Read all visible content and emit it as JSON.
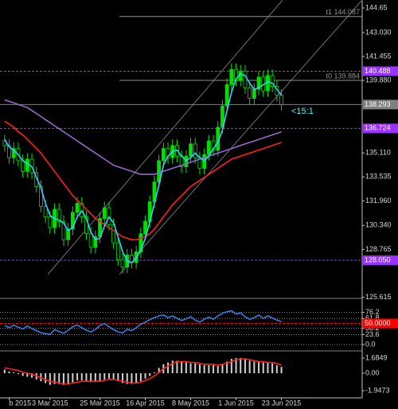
{
  "chart_data": [
    {
      "type": "candlestick",
      "categories": [
        null,
        "b 2015",
        null,
        null,
        null,
        null,
        null,
        null,
        null,
        null,
        "3 Mar 2015",
        null,
        null,
        null,
        null,
        null,
        null,
        null,
        null,
        null,
        null,
        "25 Mar 2015",
        null,
        null,
        null,
        null,
        null,
        null,
        null,
        null,
        null,
        "16 Apr 2015",
        null,
        null,
        null,
        null,
        null,
        null,
        null,
        null,
        null,
        "8 May 2015",
        null,
        null,
        null,
        null,
        null,
        null,
        null,
        null,
        null,
        "1 Jun 2015",
        null,
        null,
        null,
        null,
        null,
        null,
        null,
        null,
        null,
        "23 Jun 2015"
      ],
      "open": [
        135.9,
        135.6,
        134.8,
        135.4,
        134.6,
        133.9,
        134.7,
        133.8,
        132.9,
        131.6,
        130.9,
        130.2,
        131.4,
        130.6,
        129.4,
        130.1,
        131.2,
        131.8,
        130.9,
        129.8,
        128.9,
        129.6,
        130.8,
        131.5,
        130.4,
        129.2,
        128.1,
        127.6,
        128.4,
        127.9,
        128.6,
        129.8,
        130.6,
        131.9,
        133.2,
        134.6,
        135.4,
        134.8,
        135.6,
        134.9,
        134.2,
        134.9,
        135.7,
        134.8,
        134.1,
        135.0,
        135.9,
        135.3,
        136.8,
        138.2,
        139.6,
        140.6,
        139.9,
        140.5,
        139.4,
        138.7,
        139.3,
        140.1,
        139.2,
        140.2,
        139.5,
        138.9
      ],
      "high": [
        136.3,
        136.0,
        135.8,
        135.8,
        135.0,
        135.1,
        135.1,
        134.2,
        133.3,
        132.0,
        131.3,
        131.8,
        131.8,
        131.0,
        130.5,
        131.6,
        132.2,
        132.2,
        131.3,
        130.2,
        130.0,
        131.2,
        131.9,
        131.9,
        130.8,
        129.6,
        128.5,
        128.8,
        128.8,
        129.0,
        130.2,
        131.0,
        132.3,
        133.6,
        135.0,
        135.8,
        135.8,
        136.0,
        136.0,
        135.3,
        135.3,
        136.1,
        136.1,
        135.2,
        135.4,
        136.3,
        136.3,
        137.2,
        138.6,
        140.0,
        141.0,
        141.0,
        140.9,
        140.9,
        139.8,
        139.7,
        140.5,
        140.5,
        140.6,
        140.6,
        139.9,
        139.3
      ],
      "low": [
        135.2,
        134.4,
        134.4,
        134.2,
        133.5,
        133.5,
        133.4,
        132.5,
        131.2,
        130.5,
        129.8,
        129.8,
        130.2,
        129.0,
        129.0,
        129.7,
        130.8,
        130.5,
        129.4,
        128.5,
        128.5,
        129.2,
        130.4,
        130.0,
        128.8,
        127.7,
        127.2,
        127.2,
        127.5,
        127.5,
        128.2,
        129.4,
        130.2,
        131.5,
        132.8,
        134.2,
        134.4,
        134.4,
        134.5,
        133.8,
        133.8,
        134.5,
        134.4,
        133.7,
        133.7,
        134.6,
        134.9,
        134.9,
        136.4,
        137.8,
        139.2,
        139.5,
        139.5,
        139.0,
        138.3,
        138.3,
        138.9,
        138.8,
        138.8,
        139.1,
        138.5,
        137.9
      ],
      "close": [
        135.6,
        134.8,
        135.4,
        134.6,
        133.9,
        134.7,
        133.8,
        132.9,
        131.6,
        130.9,
        130.2,
        131.4,
        130.6,
        129.4,
        130.1,
        131.2,
        131.8,
        130.9,
        129.8,
        128.9,
        129.6,
        130.8,
        131.5,
        130.4,
        129.2,
        128.1,
        127.6,
        128.4,
        127.9,
        128.6,
        129.8,
        130.6,
        131.9,
        133.2,
        134.6,
        135.4,
        134.8,
        135.6,
        134.9,
        134.2,
        134.9,
        135.7,
        134.8,
        134.1,
        135.0,
        135.9,
        135.3,
        136.8,
        138.2,
        139.6,
        140.6,
        139.9,
        140.5,
        139.4,
        138.7,
        139.3,
        140.1,
        139.2,
        140.2,
        139.5,
        138.9,
        138.3
      ],
      "up_color": "#00e000",
      "down_color": "#000000",
      "series": [
        {
          "color": "#9966cc",
          "values": [
            138.6,
            138.5,
            138.4,
            138.3,
            138.2,
            138.1,
            137.9,
            137.7,
            137.5,
            137.3,
            137.1,
            136.9,
            136.7,
            136.5,
            136.3,
            136.1,
            135.9,
            135.7,
            135.5,
            135.3,
            135.1,
            134.9,
            134.7,
            134.5,
            134.3,
            134.2,
            134.1,
            134.0,
            133.9,
            133.8,
            133.7,
            133.7,
            133.7,
            133.7,
            133.8,
            133.9,
            134.0,
            134.1,
            134.2,
            134.3,
            134.4,
            134.5,
            134.6,
            134.7,
            134.8,
            134.9,
            135.0,
            135.1,
            135.2,
            135.3,
            135.4,
            135.5,
            135.6,
            135.7,
            135.8,
            135.9,
            136.0,
            136.1,
            136.2,
            136.3,
            136.4,
            136.5
          ]
        },
        {
          "color": "#ff2020",
          "values": [
            137.2,
            137.0,
            136.8,
            136.5,
            136.3,
            136.0,
            135.7,
            135.4,
            135.1,
            134.7,
            134.3,
            133.9,
            133.5,
            133.1,
            132.7,
            132.3,
            132.0,
            131.7,
            131.4,
            131.1,
            130.8,
            130.6,
            130.4,
            130.2,
            130.0,
            129.8,
            129.6,
            129.5,
            129.4,
            129.4,
            129.5,
            129.6,
            129.8,
            130.1,
            130.5,
            130.9,
            131.3,
            131.7,
            132.0,
            132.3,
            132.6,
            132.9,
            133.1,
            133.3,
            133.5,
            133.7,
            133.9,
            134.1,
            134.3,
            134.5,
            134.7,
            134.8,
            134.9,
            135.0,
            135.1,
            135.2,
            135.3,
            135.4,
            135.5,
            135.6,
            135.7,
            135.8
          ]
        },
        {
          "color": "#33ccff",
          "values": [
            136.0,
            135.5,
            135.3,
            135.0,
            134.6,
            134.4,
            134.2,
            133.5,
            132.8,
            131.8,
            131.0,
            130.8,
            130.7,
            130.5,
            130.0,
            130.2,
            130.9,
            131.3,
            130.8,
            129.9,
            129.4,
            129.5,
            130.3,
            130.9,
            130.5,
            129.6,
            128.6,
            128.0,
            127.9,
            128.2,
            128.7,
            129.5,
            130.6,
            131.8,
            133.0,
            134.3,
            134.9,
            135.2,
            135.3,
            134.9,
            134.6,
            134.8,
            135.1,
            134.8,
            134.6,
            134.9,
            135.4,
            135.8,
            136.6,
            137.9,
            139.1,
            140.0,
            140.3,
            140.2,
            139.7,
            139.3,
            139.4,
            139.6,
            139.8,
            139.7,
            139.3,
            138.9
          ]
        }
      ],
      "ylim": [
        125.7,
        145.17
      ],
      "yticks": [
        144.65,
        {
          "value": 143.03,
          "label": "143.030"
        },
        141.455,
        {
          "value": 139.88,
          "label": "139.880"
        },
        {
          "value": 135.11,
          "label": "135.110"
        },
        133.535,
        {
          "value": 131.96,
          "label": "131.960"
        },
        {
          "value": 130.34,
          "label": "130.340"
        },
        128.765,
        125.615
      ],
      "grid": false,
      "levels": [
        {
          "value": 140.488,
          "color": "#9933ff"
        },
        {
          "value": 138.293,
          "color": "#808080"
        },
        {
          "value": 136.724,
          "color": "#9933ff"
        },
        {
          "value": 128.05,
          "label": "128.050",
          "color": "#9933ff"
        }
      ],
      "annotations": [
        {
          "text": "t1 144.087",
          "value": 144.087,
          "color": "#909090"
        },
        {
          "text": "t0 139.884",
          "value": 139.884,
          "color": "#909090"
        },
        {
          "text": "<15:1",
          "color": "#33ffff"
        }
      ]
    },
    {
      "type": "line",
      "series": [
        {
          "color": "#3a7be0",
          "values": [
            45,
            40,
            46,
            41,
            37,
            44,
            38,
            33,
            28,
            26,
            24,
            35,
            31,
            27,
            34,
            42,
            46,
            40,
            34,
            30,
            36,
            45,
            50,
            42,
            35,
            30,
            28,
            36,
            33,
            40,
            48,
            53,
            59,
            64,
            68,
            70,
            64,
            68,
            62,
            57,
            61,
            66,
            58,
            53,
            60,
            65,
            60,
            68,
            74,
            78,
            80,
            72,
            75,
            66,
            60,
            64,
            70,
            62,
            68,
            63,
            58,
            54
          ]
        }
      ],
      "ylim": [
        0,
        100
      ],
      "yticks": [
        76.2,
        61.8,
        38.2,
        23.6,
        {
          "value": 0,
          "label": "0.0"
        }
      ],
      "grid": true,
      "levels": [
        {
          "value": 50,
          "label": "50.0000",
          "color": "#ff0000"
        }
      ]
    },
    {
      "type": "macd",
      "values": [
        0.4,
        0.2,
        0.1,
        -0.1,
        -0.3,
        -0.4,
        -0.5,
        -0.7,
        -0.9,
        -1.1,
        -1.3,
        -1.2,
        -1.2,
        -1.3,
        -1.2,
        -1.0,
        -0.8,
        -0.8,
        -0.9,
        -1.0,
        -1.0,
        -0.9,
        -0.7,
        -0.6,
        -0.7,
        -0.9,
        -1.1,
        -1.2,
        -1.2,
        -1.1,
        -0.9,
        -0.6,
        -0.3,
        0.1,
        0.6,
        1.0,
        1.2,
        1.4,
        1.4,
        1.3,
        1.2,
        1.1,
        1.1,
        1.0,
        0.9,
        0.9,
        0.9,
        0.8,
        1.0,
        1.3,
        1.6,
        1.7,
        1.7,
        1.6,
        1.4,
        1.3,
        1.3,
        1.2,
        1.2,
        1.1,
        0.9,
        0.7
      ],
      "color": "#d0d0d0",
      "series": [
        {
          "color": "#ff2020",
          "values": [
            0.6,
            0.5,
            0.4,
            0.3,
            0.1,
            0.0,
            -0.1,
            -0.3,
            -0.5,
            -0.7,
            -0.9,
            -1.0,
            -1.1,
            -1.2,
            -1.2,
            -1.1,
            -1.0,
            -0.9,
            -0.9,
            -0.9,
            -0.9,
            -0.9,
            -0.8,
            -0.7,
            -0.7,
            -0.8,
            -0.9,
            -1.0,
            -1.1,
            -1.1,
            -1.0,
            -0.8,
            -0.6,
            -0.3,
            0.1,
            0.5,
            0.8,
            1.1,
            1.3,
            1.3,
            1.3,
            1.2,
            1.2,
            1.1,
            1.0,
            1.0,
            1.0,
            0.9,
            1.0,
            1.1,
            1.3,
            1.5,
            1.6,
            1.6,
            1.5,
            1.4,
            1.3,
            1.3,
            1.2,
            1.2,
            1.1,
            0.9
          ]
        }
      ],
      "ylim": [
        -2.75,
        2.4
      ],
      "yticks": [
        1.6849,
        {
          "value": 0,
          "label": "0.00"
        },
        -1.9473
      ],
      "grid": false
    }
  ]
}
